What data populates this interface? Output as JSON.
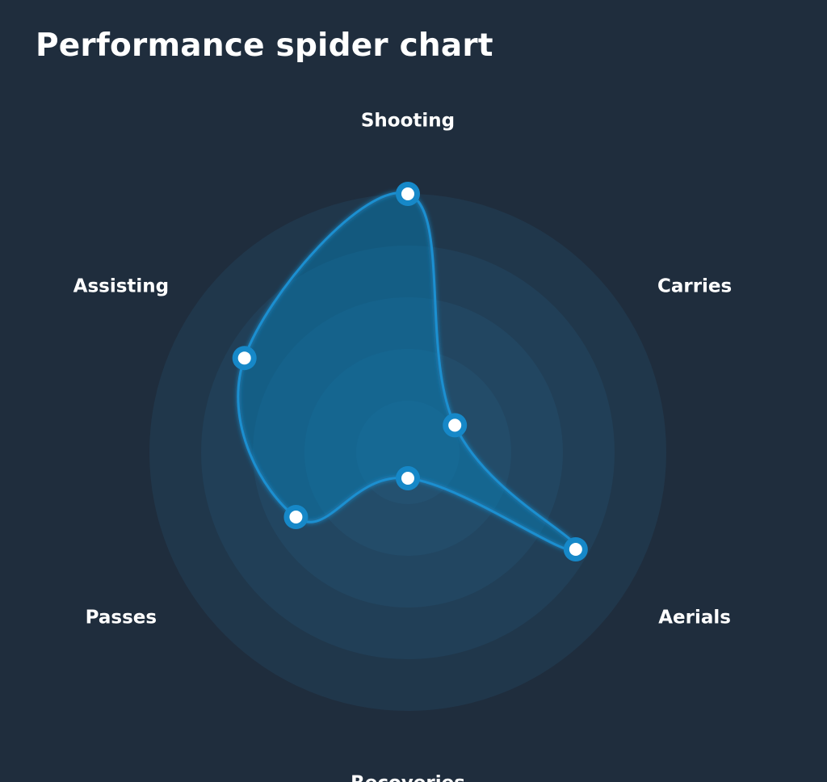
{
  "chart_data": {
    "type": "radar",
    "title": "Performance spider chart",
    "categories": [
      "Shooting",
      "Carries",
      "Aerials",
      "Recoveries",
      "Passes",
      "Assisting"
    ],
    "series": [
      {
        "values": [
          100,
          21,
          75,
          10,
          50,
          73
        ]
      }
    ],
    "rlim": [
      0,
      100
    ],
    "rings": 5,
    "colors": {
      "background": "#1f2d3d",
      "line": "#1a8fd0",
      "area": "rgba(24, 140, 205, 0.22)",
      "ring_base": "#2a6b95",
      "marker_fill": "#ffffff",
      "marker_ring": "#1688c8",
      "label": "#ffffff"
    }
  }
}
